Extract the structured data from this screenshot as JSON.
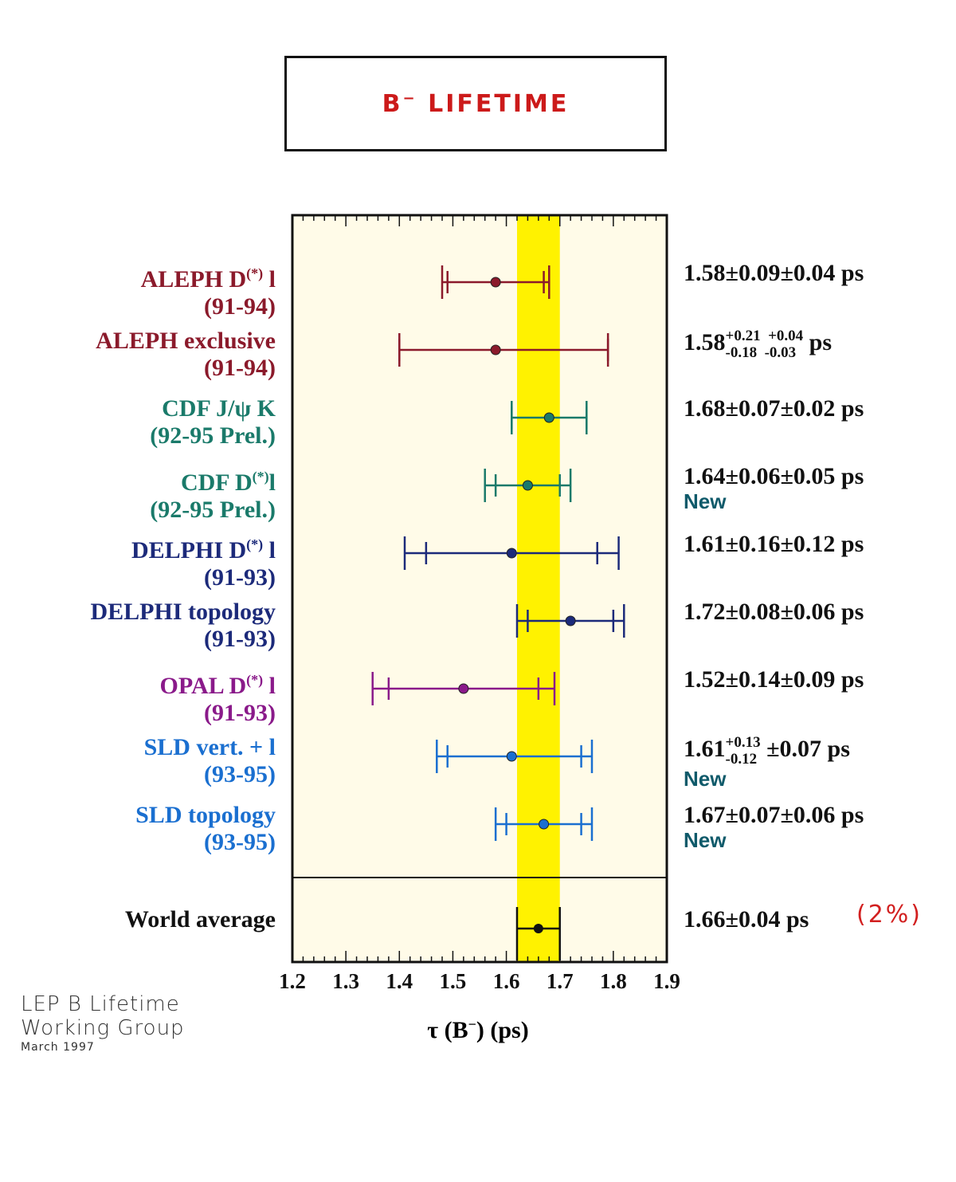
{
  "title": {
    "main": "B",
    "sup": "−",
    "rest": " LIFETIME"
  },
  "chart_data": {
    "type": "scatter",
    "xlabel": "τ (B⁻) (ps)",
    "xlim": [
      1.2,
      1.9
    ],
    "x_ticks": [
      "1.2",
      "1.3",
      "1.4",
      "1.5",
      "1.6",
      "1.7",
      "1.8",
      "1.9"
    ],
    "band": {
      "center": 1.66,
      "low": 1.62,
      "high": 1.7,
      "color": "#fff200"
    },
    "measurements": [
      {
        "label": "ALEPH D",
        "label_sup": "(*)",
        "label_tail": " l",
        "period": "(91-94)",
        "color": "#8b1a2b",
        "value": 1.58,
        "stat_lo": 1.49,
        "stat_hi": 1.67,
        "tot_lo": 1.48,
        "tot_hi": 1.68,
        "result": "1.58±0.09±0.04 ps",
        "is_new": false
      },
      {
        "label": "ALEPH exclusive",
        "label_sup": "",
        "label_tail": "",
        "period": "(91-94)",
        "color": "#8b1a2b",
        "value": 1.58,
        "stat_lo": 1.4,
        "stat_hi": 1.79,
        "tot_lo": 1.4,
        "tot_hi": 1.79,
        "result_main": "1.58",
        "result_sup": "+0.21  +0.04",
        "result_sub": "-0.18  -0.03",
        "result_tail": " ps",
        "is_new": false
      },
      {
        "label": "CDF J/ψ K",
        "label_sup": "",
        "label_tail": "",
        "period": "(92-95 Prel.)",
        "color": "#1a7a6a",
        "value": 1.68,
        "stat_lo": 1.61,
        "stat_hi": 1.75,
        "tot_lo": 1.61,
        "tot_hi": 1.75,
        "result": "1.68±0.07±0.02 ps",
        "is_new": false
      },
      {
        "label": "CDF  D",
        "label_sup": "(*)",
        "label_tail": "l",
        "period": "(92-95 Prel.)",
        "color": "#1a7a6a",
        "value": 1.64,
        "stat_lo": 1.58,
        "stat_hi": 1.7,
        "tot_lo": 1.56,
        "tot_hi": 1.72,
        "result": "1.64±0.06±0.05 ps",
        "is_new": true,
        "new_label": "New"
      },
      {
        "label": "DELPHI D",
        "label_sup": "(*)",
        "label_tail": " l",
        "period": "(91-93)",
        "color": "#1c2a7a",
        "value": 1.61,
        "stat_lo": 1.45,
        "stat_hi": 1.77,
        "tot_lo": 1.41,
        "tot_hi": 1.81,
        "result": "1.61±0.16±0.12 ps",
        "is_new": false
      },
      {
        "label": "DELPHI topology",
        "label_sup": "",
        "label_tail": "",
        "period": "(91-93)",
        "color": "#1c2a7a",
        "value": 1.72,
        "stat_lo": 1.64,
        "stat_hi": 1.8,
        "tot_lo": 1.62,
        "tot_hi": 1.82,
        "result": "1.72±0.08±0.06 ps",
        "is_new": false
      },
      {
        "label": "OPAL D",
        "label_sup": "(*)",
        "label_tail": " l",
        "period": "(91-93)",
        "color": "#8a1a8a",
        "value": 1.52,
        "stat_lo": 1.38,
        "stat_hi": 1.66,
        "tot_lo": 1.35,
        "tot_hi": 1.69,
        "result": "1.52±0.14±0.09 ps",
        "is_new": false
      },
      {
        "label": "SLD vert. + l",
        "label_sup": "",
        "label_tail": "",
        "period": "(93-95)",
        "color": "#1a6fd0",
        "value": 1.61,
        "stat_lo": 1.49,
        "stat_hi": 1.74,
        "tot_lo": 1.47,
        "tot_hi": 1.76,
        "result_main": "1.61",
        "result_sup": "+0.13",
        "result_sub": "-0.12",
        "result_tail": " ±0.07 ps",
        "is_new": true,
        "new_label": "New"
      },
      {
        "label": "SLD topology",
        "label_sup": "",
        "label_tail": "",
        "period": "(93-95)",
        "color": "#1a6fd0",
        "value": 1.67,
        "stat_lo": 1.6,
        "stat_hi": 1.74,
        "tot_lo": 1.58,
        "tot_hi": 1.76,
        "result": "1.67±0.07±0.06 ps",
        "is_new": true,
        "new_label": "New"
      }
    ],
    "average": {
      "label": "World average",
      "value": 1.66,
      "lo": 1.62,
      "hi": 1.7,
      "result": "1.66±0.04 ps",
      "color": "#111111"
    }
  },
  "annotation": "(2%)",
  "credit": {
    "line1": "LEP B Lifetime",
    "line2": "Working Group",
    "line3": "March 1997"
  }
}
